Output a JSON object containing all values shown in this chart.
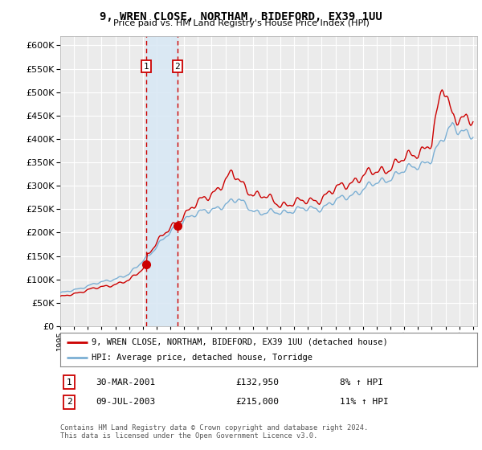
{
  "title": "9, WREN CLOSE, NORTHAM, BIDEFORD, EX39 1UU",
  "subtitle": "Price paid vs. HM Land Registry's House Price Index (HPI)",
  "ylim": [
    0,
    620000
  ],
  "yticks": [
    0,
    50000,
    100000,
    150000,
    200000,
    250000,
    300000,
    350000,
    400000,
    450000,
    500000,
    550000,
    600000
  ],
  "xstart_year": 1995,
  "xend_year": 2025,
  "purchase1_date": 2001.24,
  "purchase1_price": 132950,
  "purchase2_date": 2003.52,
  "purchase2_price": 215000,
  "legend_line1": "9, WREN CLOSE, NORTHAM, BIDEFORD, EX39 1UU (detached house)",
  "legend_line2": "HPI: Average price, detached house, Torridge",
  "table_row1": [
    "1",
    "30-MAR-2001",
    "£132,950",
    "8% ↑ HPI"
  ],
  "table_row2": [
    "2",
    "09-JUL-2003",
    "£215,000",
    "11% ↑ HPI"
  ],
  "footnote": "Contains HM Land Registry data © Crown copyright and database right 2024.\nThis data is licensed under the Open Government Licence v3.0.",
  "background_color": "#ffffff",
  "plot_bg_color": "#ebebeb",
  "grid_color": "#ffffff",
  "hpi_color": "#7bafd4",
  "price_color": "#cc0000",
  "purchase_vline_color": "#cc0000",
  "shade_color": "#d8e8f5",
  "box_color": "#cc0000"
}
